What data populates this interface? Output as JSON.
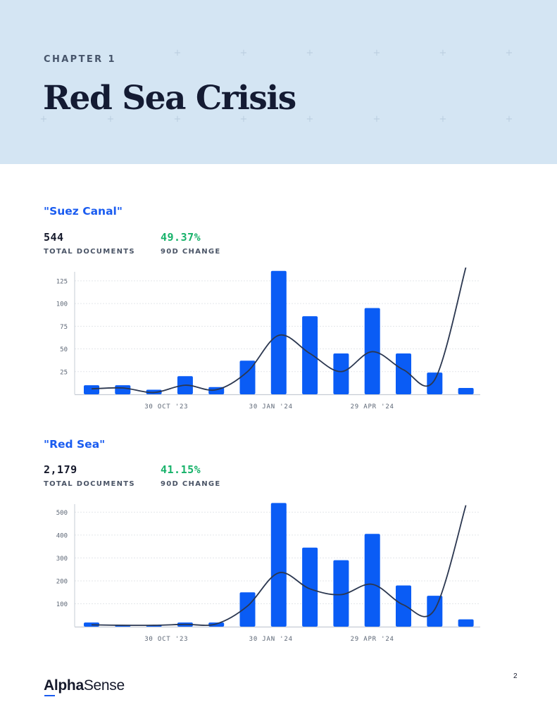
{
  "header": {
    "chapter": "CHAPTER 1",
    "title": "Red Sea Crisis"
  },
  "sections": [
    {
      "title": "\"Suez Canal\"",
      "total_value": "544",
      "total_label": "TOTAL DOCUMENTS",
      "change_value": "49.37%",
      "change_label": "90D CHANGE"
    },
    {
      "title": "\"Red Sea\"",
      "total_value": "2,179",
      "total_label": "TOTAL DOCUMENTS",
      "change_value": "41.15%",
      "change_label": "90D CHANGE"
    }
  ],
  "colors": {
    "bar": "#0a5cf5",
    "line": "#2b3750",
    "grid": "#e3e6ea",
    "axis": "#c6ccd4",
    "tick": "#5c6675"
  },
  "chart_data": [
    {
      "type": "bar",
      "title": "\"Suez Canal\"",
      "xlabel": "",
      "ylabel": "",
      "ylim": [
        0,
        135
      ],
      "yticks": [
        25,
        50,
        75,
        100,
        125
      ],
      "x_tick_labels": [
        {
          "label": "30 OCT '23",
          "index": 2.4
        },
        {
          "label": "30 JAN '24",
          "index": 5.75
        },
        {
          "label": "29 APR '24",
          "index": 9.0
        }
      ],
      "values": [
        10,
        10,
        5,
        20,
        8,
        37,
        136,
        86,
        45,
        95,
        45,
        24,
        7
      ],
      "trend": [
        6,
        7,
        2,
        10,
        5,
        25,
        65,
        45,
        25,
        47,
        27,
        16,
        140
      ]
    },
    {
      "type": "bar",
      "title": "\"Red Sea\"",
      "xlabel": "",
      "ylabel": "",
      "ylim": [
        0,
        535
      ],
      "yticks": [
        100,
        200,
        300,
        400,
        500
      ],
      "x_tick_labels": [
        {
          "label": "30 OCT '23",
          "index": 2.4
        },
        {
          "label": "30 JAN '24",
          "index": 5.75
        },
        {
          "label": "29 APR '24",
          "index": 9.0
        }
      ],
      "values": [
        18,
        5,
        5,
        18,
        18,
        150,
        540,
        345,
        290,
        405,
        180,
        135,
        32
      ],
      "trend": [
        8,
        6,
        6,
        10,
        12,
        90,
        235,
        165,
        140,
        185,
        95,
        75,
        530
      ]
    }
  ]
}
